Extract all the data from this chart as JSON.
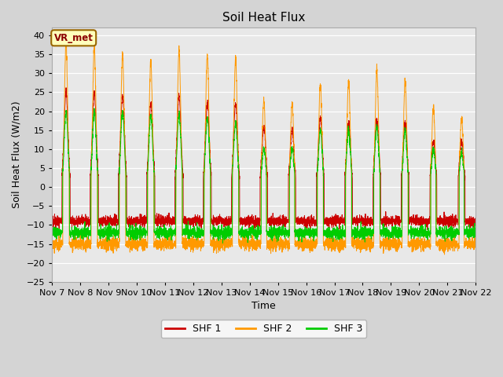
{
  "title": "Soil Heat Flux",
  "ylabel": "Soil Heat Flux (W/m2)",
  "xlabel": "Time",
  "ylim": [
    -25,
    42
  ],
  "yticks": [
    -25,
    -20,
    -15,
    -10,
    -5,
    0,
    5,
    10,
    15,
    20,
    25,
    30,
    35,
    40
  ],
  "colors": {
    "SHF 1": "#cc0000",
    "SHF 2": "#ff9900",
    "SHF 3": "#00cc00"
  },
  "legend_labels": [
    "SHF 1",
    "SHF 2",
    "SHF 3"
  ],
  "annotation": "VR_met",
  "fig_bg_color": "#d4d4d4",
  "plot_bg_color": "#e8e8e8",
  "n_days": 15,
  "points_per_day": 288,
  "start_day": 7,
  "title_fontsize": 11,
  "axis_fontsize": 8,
  "label_fontsize": 9
}
